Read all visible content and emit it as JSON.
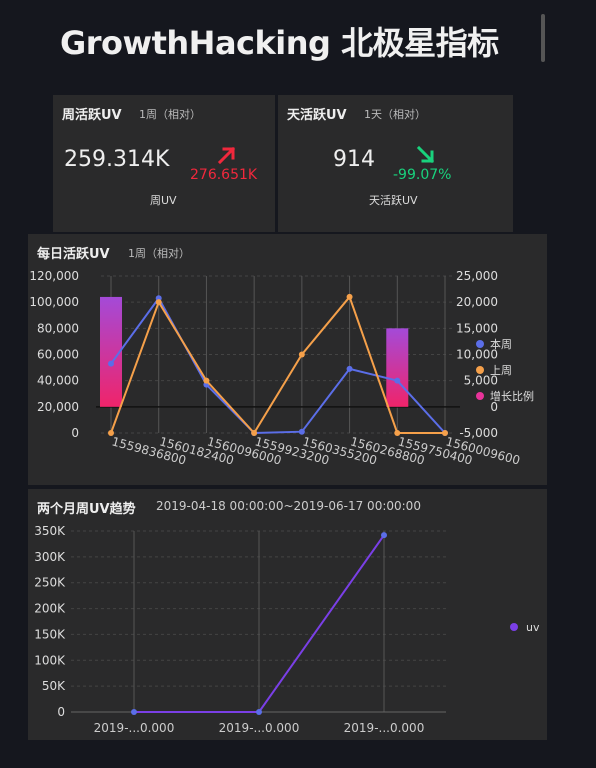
{
  "header": {
    "title": "GrowthHacking 北极星指标"
  },
  "weekly_card": {
    "title": "周活跃UV",
    "period": "1周（相对）",
    "value": "259.314K",
    "delta": "276.651K",
    "direction": "up",
    "label": "周UV",
    "delta_color": "#f0283c"
  },
  "daily_card": {
    "title": "天活跃UV",
    "period": "1天（相对）",
    "value": "914",
    "delta": "-99.07%",
    "direction": "down",
    "label": "天活跃UV",
    "delta_color": "#19d27d"
  },
  "daily_chart": {
    "title": "每日活跃UV",
    "period": "1周（相对）",
    "chart_data": {
      "type": "line",
      "categories": [
        "1559836800",
        "1560182400",
        "1560096000",
        "1559923200",
        "1560355200",
        "1560268800",
        "1559750400",
        "1560009600"
      ],
      "left_axis": {
        "ticks": [
          "120,000",
          "100,000",
          "80,000",
          "60,000",
          "40,000",
          "20,000",
          "0"
        ],
        "range": [
          0,
          120000
        ]
      },
      "right_axis": {
        "ticks": [
          "25,000",
          "20,000",
          "15,000",
          "10,000",
          "5,000",
          "0",
          "-5,000"
        ],
        "range": [
          -5000,
          25000
        ]
      },
      "series": [
        {
          "name": "本周",
          "axis": "left",
          "color": "#5b6ee8",
          "values": [
            53000,
            103000,
            37000,
            0,
            1000,
            49000,
            40000,
            0
          ]
        },
        {
          "name": "上周",
          "axis": "right",
          "color": "#f5a04a",
          "values": [
            -5000,
            20000,
            5000,
            -5000,
            10000,
            21000,
            -5000,
            -5000
          ]
        },
        {
          "name": "增长比例",
          "axis": "right",
          "type": "bar",
          "color": "#e8339a",
          "values": [
            21000,
            null,
            null,
            null,
            null,
            null,
            15000,
            null
          ]
        }
      ],
      "grid": true,
      "legend": "right"
    }
  },
  "trend_chart": {
    "title": "两个月周UV趋势",
    "period": "2019-04-18 00:00:00~2019-06-17 00:00:00",
    "chart_data": {
      "type": "line",
      "categories": [
        "2019-...0.000",
        "2019-...0.000",
        "2019-...0.000"
      ],
      "y_ticks": [
        "350K",
        "300K",
        "250K",
        "200K",
        "150K",
        "100K",
        "50K",
        "0"
      ],
      "ylim": [
        0,
        350000
      ],
      "series": [
        {
          "name": "uv",
          "color": "#7a3fe6",
          "values": [
            0,
            0,
            342000
          ]
        }
      ],
      "grid": true,
      "legend": "right"
    }
  }
}
